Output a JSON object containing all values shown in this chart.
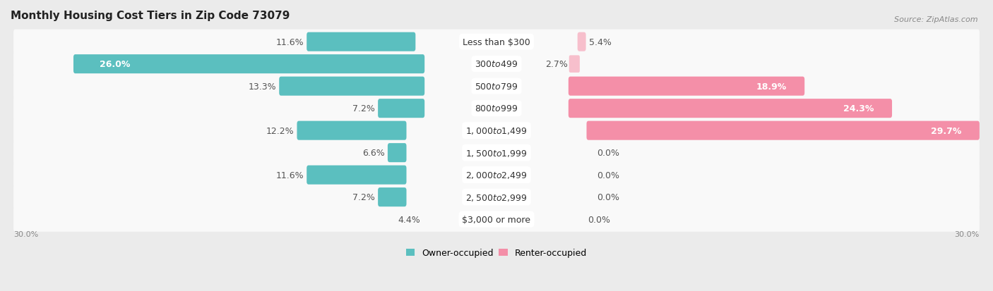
{
  "title": "Monthly Housing Cost Tiers in Zip Code 73079",
  "source": "Source: ZipAtlas.com",
  "categories": [
    "Less than $300",
    "$300 to $499",
    "$500 to $799",
    "$800 to $999",
    "$1,000 to $1,499",
    "$1,500 to $1,999",
    "$2,000 to $2,499",
    "$2,500 to $2,999",
    "$3,000 or more"
  ],
  "owner_values": [
    11.6,
    26.0,
    13.3,
    7.2,
    12.2,
    6.6,
    11.6,
    7.2,
    4.4
  ],
  "renter_values": [
    5.4,
    2.7,
    18.9,
    24.3,
    29.7,
    0.0,
    0.0,
    0.0,
    0.0
  ],
  "owner_color": "#5bbfbf",
  "renter_color": "#f48fa8",
  "renter_color_light": "#f7bfcc",
  "background_color": "#ebebeb",
  "row_bg_color": "#f5f5f5",
  "xlim": 30.0,
  "bar_height": 0.62,
  "label_fontsize": 9.0,
  "cat_fontsize": 9.0,
  "title_fontsize": 11,
  "legend_fontsize": 9,
  "owner_label_threshold": 20.0,
  "renter_label_threshold": 15.0
}
